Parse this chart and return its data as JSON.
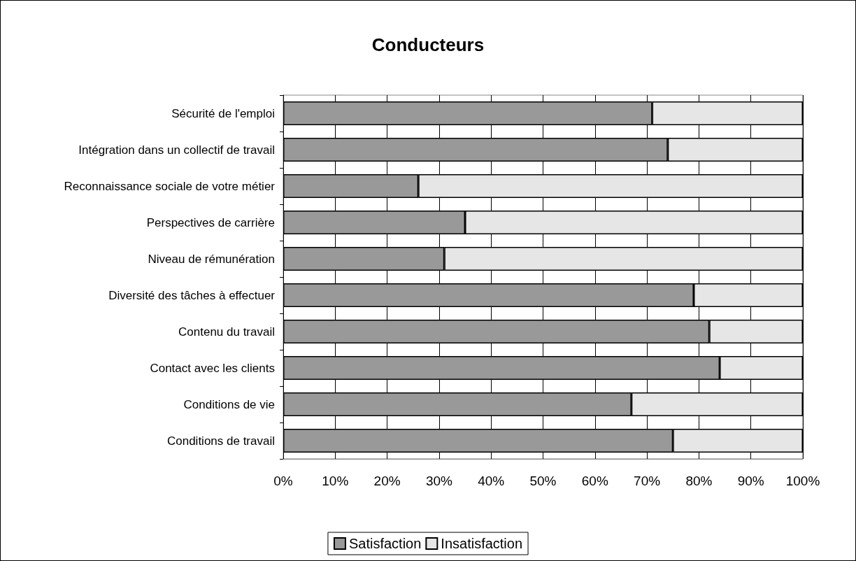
{
  "chart_data": {
    "type": "bar",
    "title": "Conducteurs",
    "orientation": "horizontal",
    "stacked": true,
    "categories": [
      "Sécurité de l'emploi",
      "Intégration dans un collectif de travail",
      "Reconnaissance sociale de votre métier",
      "Perspectives de carrière",
      "Niveau de rémunération",
      "Diversité des tâches à effectuer",
      "Contenu du travail",
      "Contact avec les clients",
      "Conditions de vie",
      "Conditions de travail"
    ],
    "series": [
      {
        "name": "Satisfaction",
        "color": "#999999",
        "values": [
          71,
          74,
          26,
          35,
          31,
          79,
          82,
          84,
          67,
          75
        ]
      },
      {
        "name": "Insatisfaction",
        "color": "#e6e6e6",
        "values": [
          29,
          26,
          74,
          65,
          69,
          21,
          18,
          16,
          33,
          25
        ]
      }
    ],
    "xlim": [
      0,
      100
    ],
    "xticks": [
      {
        "value": 0,
        "label": "0%"
      },
      {
        "value": 10,
        "label": "10%"
      },
      {
        "value": 20,
        "label": "20%"
      },
      {
        "value": 30,
        "label": "30%"
      },
      {
        "value": 40,
        "label": "40%"
      },
      {
        "value": 50,
        "label": "50%"
      },
      {
        "value": 60,
        "label": "60%"
      },
      {
        "value": 70,
        "label": "70%"
      },
      {
        "value": 80,
        "label": "80%"
      },
      {
        "value": 90,
        "label": "90%"
      },
      {
        "value": 100,
        "label": "100%"
      }
    ],
    "grid": "x",
    "legend": "bottom"
  }
}
